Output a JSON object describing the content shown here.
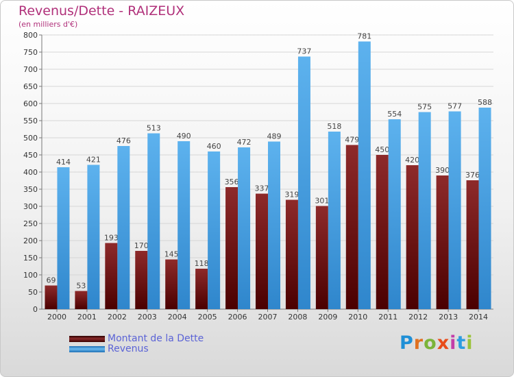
{
  "title": "Revenus/Dette - RAIZEUX",
  "subtitle": "(en milliers d'€)",
  "brand": {
    "letters": [
      "P",
      "r",
      "o",
      "x",
      "i",
      "t",
      "i"
    ],
    "colors": [
      "#1f8fd6",
      "#e0701f",
      "#7bb43a",
      "#e84c1a",
      "#c33da8",
      "#2e9de0",
      "#9bc33a"
    ]
  },
  "chart_data": {
    "type": "bar",
    "categories": [
      "2000",
      "2001",
      "2002",
      "2003",
      "2004",
      "2005",
      "2006",
      "2007",
      "2008",
      "2009",
      "2010",
      "2011",
      "2012",
      "2013",
      "2014"
    ],
    "series": [
      {
        "name": "Montant de la Dette",
        "color": "#7a1818",
        "values": [
          69,
          53,
          193,
          170,
          145,
          118,
          356,
          337,
          319,
          301,
          479,
          450,
          420,
          390,
          376
        ]
      },
      {
        "name": "Revenus",
        "color": "#3f9ce0",
        "values": [
          414,
          421,
          476,
          513,
          490,
          460,
          472,
          489,
          737,
          518,
          781,
          554,
          575,
          577,
          588
        ]
      }
    ],
    "ylim": [
      0,
      800
    ],
    "yticks": [
      0,
      50,
      100,
      150,
      200,
      250,
      300,
      350,
      400,
      450,
      500,
      550,
      600,
      650,
      700,
      750,
      800
    ],
    "grid": true,
    "legend_position": "bottom-left"
  }
}
